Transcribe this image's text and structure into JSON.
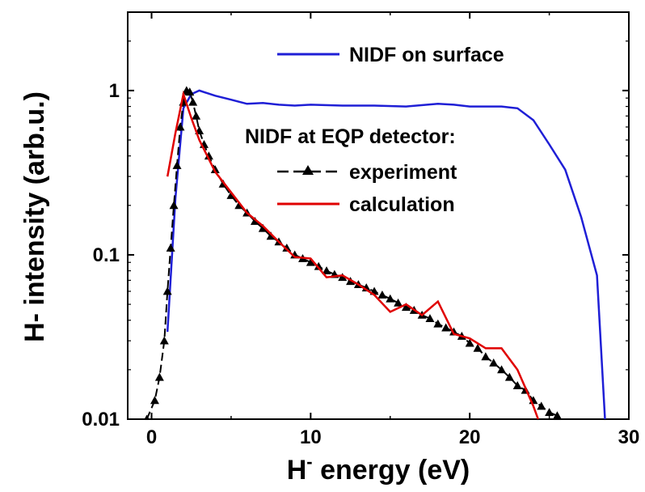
{
  "chart_data": {
    "type": "line",
    "xlabel": {
      "main": "H",
      "sup": "-",
      "rest": " energy (eV)"
    },
    "ylabel": "H- intensity (arb.u.)",
    "xlim": [
      -1.5,
      30
    ],
    "ylim": [
      0.01,
      3
    ],
    "yscale": "log",
    "x_ticks": [
      0,
      10,
      20,
      30
    ],
    "x_tick_labels": [
      "0",
      "10",
      "20",
      "30"
    ],
    "y_ticks": [
      0.01,
      0.1,
      1
    ],
    "y_tick_labels": [
      "0.01",
      "0.1",
      "1"
    ],
    "legend_group_title": "NIDF at EQP detector:",
    "series": [
      {
        "name": "NIDF on surface",
        "color": "#1f1fd6",
        "style": "line",
        "x": [
          1.0,
          1.5,
          2.0,
          2.5,
          3.0,
          4.0,
          5.0,
          6.0,
          7.0,
          8.0,
          9.0,
          10.0,
          12.0,
          14.0,
          16.0,
          18.0,
          19.0,
          20.0,
          21.0,
          22.0,
          23.0,
          24.0,
          25.0,
          26.0,
          27.0,
          28.0,
          28.5
        ],
        "y": [
          0.034,
          0.22,
          0.78,
          0.95,
          1.0,
          0.93,
          0.88,
          0.83,
          0.84,
          0.82,
          0.81,
          0.82,
          0.81,
          0.81,
          0.8,
          0.83,
          0.82,
          0.8,
          0.8,
          0.8,
          0.78,
          0.66,
          0.47,
          0.33,
          0.17,
          0.075,
          0.01
        ]
      },
      {
        "name": "experiment",
        "color": "#000000",
        "style": "dash-triangle",
        "x": [
          -0.3,
          0.2,
          0.5,
          0.8,
          1.0,
          1.2,
          1.4,
          1.6,
          1.8,
          2.0,
          2.2,
          2.4,
          2.6,
          2.8,
          3.0,
          3.3,
          3.6,
          4.0,
          4.5,
          5.0,
          5.5,
          6.0,
          6.5,
          7.0,
          7.5,
          8.0,
          8.5,
          9.0,
          9.5,
          10.0,
          10.5,
          11.0,
          11.5,
          12.0,
          12.5,
          13.0,
          13.5,
          14.0,
          14.5,
          15.0,
          15.5,
          16.0,
          16.5,
          17.0,
          17.5,
          18.0,
          18.5,
          19.0,
          19.5,
          20.0,
          20.5,
          21.0,
          21.5,
          22.0,
          22.5,
          23.0,
          23.5,
          24.0,
          24.5,
          25.0,
          25.5
        ],
        "y": [
          0.01,
          0.013,
          0.018,
          0.03,
          0.06,
          0.11,
          0.2,
          0.35,
          0.6,
          0.85,
          1.0,
          0.98,
          0.85,
          0.7,
          0.57,
          0.47,
          0.4,
          0.33,
          0.27,
          0.23,
          0.2,
          0.18,
          0.16,
          0.145,
          0.13,
          0.12,
          0.11,
          0.1,
          0.095,
          0.09,
          0.085,
          0.08,
          0.076,
          0.073,
          0.069,
          0.066,
          0.063,
          0.06,
          0.057,
          0.054,
          0.051,
          0.048,
          0.046,
          0.043,
          0.041,
          0.038,
          0.036,
          0.034,
          0.032,
          0.029,
          0.027,
          0.024,
          0.022,
          0.02,
          0.018,
          0.016,
          0.015,
          0.013,
          0.012,
          0.011,
          0.0105
        ]
      },
      {
        "name": "calculation",
        "color": "#e00000",
        "style": "line",
        "x": [
          1.0,
          1.5,
          2.0,
          2.5,
          3.0,
          4.0,
          5.0,
          6.0,
          7.0,
          8.0,
          9.0,
          10.0,
          11.0,
          12.0,
          13.0,
          14.0,
          15.0,
          16.0,
          17.0,
          18.0,
          19.0,
          20.0,
          21.0,
          22.0,
          23.0,
          24.0,
          24.3
        ],
        "y": [
          0.3,
          0.55,
          0.95,
          0.68,
          0.5,
          0.32,
          0.24,
          0.18,
          0.15,
          0.12,
          0.097,
          0.095,
          0.073,
          0.075,
          0.066,
          0.057,
          0.045,
          0.05,
          0.043,
          0.052,
          0.033,
          0.031,
          0.027,
          0.027,
          0.02,
          0.012,
          0.01
        ]
      }
    ]
  }
}
